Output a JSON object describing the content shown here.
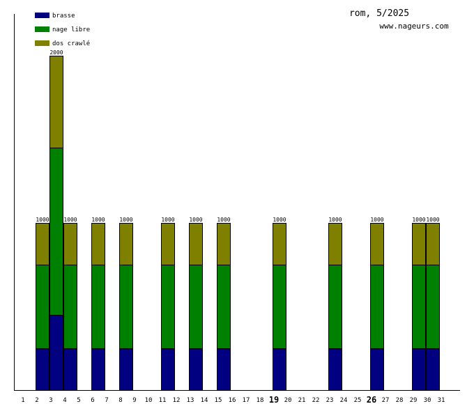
{
  "header": {
    "title": "rom, 5/2025",
    "site": "www.nageurs.com"
  },
  "chart_data": {
    "type": "bar",
    "stacked": true,
    "title": "rom, 5/2025",
    "xlabel": "",
    "ylabel": "",
    "ylim": [
      0,
      2000
    ],
    "grid": false,
    "legend_position": "top-left",
    "categories": [
      "1",
      "2",
      "3",
      "4",
      "5",
      "6",
      "7",
      "8",
      "9",
      "10",
      "11",
      "12",
      "13",
      "14",
      "15",
      "16",
      "17",
      "18",
      "19",
      "20",
      "21",
      "22",
      "23",
      "24",
      "25",
      "26",
      "27",
      "28",
      "29",
      "30",
      "31"
    ],
    "bold_days": [
      "19",
      "26"
    ],
    "series": [
      {
        "name": "brasse",
        "color": "#000080",
        "values": [
          0,
          250,
          450,
          250,
          0,
          250,
          0,
          250,
          0,
          0,
          250,
          0,
          250,
          0,
          250,
          0,
          0,
          0,
          250,
          0,
          0,
          0,
          250,
          0,
          0,
          250,
          0,
          0,
          250,
          250,
          0
        ]
      },
      {
        "name": "nage libre",
        "color": "#008000",
        "values": [
          0,
          500,
          1000,
          500,
          0,
          500,
          0,
          500,
          0,
          0,
          500,
          0,
          500,
          0,
          500,
          0,
          0,
          0,
          500,
          0,
          0,
          0,
          500,
          0,
          0,
          500,
          0,
          0,
          500,
          500,
          0
        ]
      },
      {
        "name": "dos crawlé",
        "color": "#808000",
        "values": [
          0,
          250,
          550,
          250,
          0,
          250,
          0,
          250,
          0,
          0,
          250,
          0,
          250,
          0,
          250,
          0,
          0,
          0,
          250,
          0,
          0,
          0,
          250,
          0,
          0,
          250,
          0,
          0,
          250,
          250,
          0
        ]
      }
    ],
    "totals": [
      "",
      "1000",
      "2000",
      "1000",
      "",
      "1000",
      "",
      "1000",
      "",
      "",
      "1000",
      "",
      "1000",
      "",
      "1000",
      "",
      "",
      "",
      "1000",
      "",
      "",
      "",
      "1000",
      "",
      "",
      "1000",
      "",
      "",
      "1000",
      "1000",
      ""
    ]
  }
}
